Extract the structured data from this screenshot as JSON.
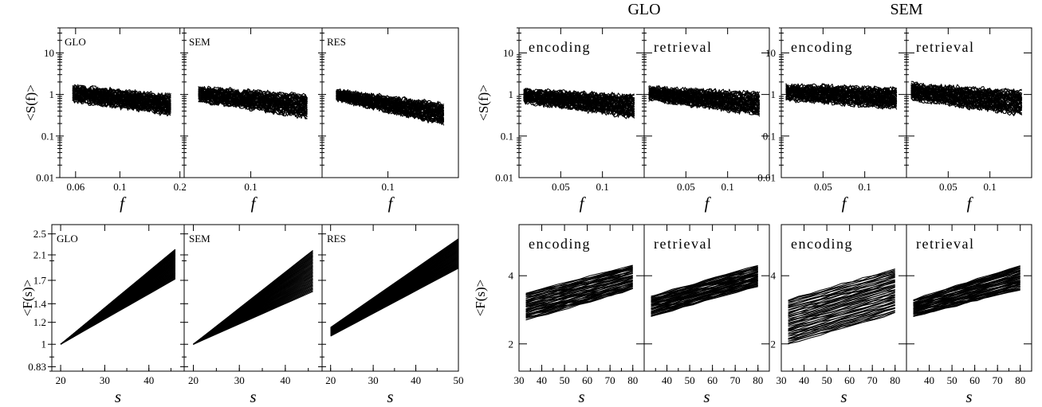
{
  "chart_data": [
    {
      "type": "line",
      "id": "left-spectrum",
      "ylabel": "<S(f)>",
      "xlabel": "f",
      "yscale": "log",
      "xscale": "log",
      "ylim": [
        0.01,
        40
      ],
      "yticks": [
        0.01,
        0.1,
        1,
        10
      ],
      "ytick_labels": [
        "0.01",
        "0.1",
        "1",
        "10"
      ],
      "panels": [
        {
          "label": "GLO",
          "xlim": [
            0.05,
            0.21
          ],
          "xticks": [
            0.06,
            0.1,
            0.2
          ],
          "xtick_labels": [
            "0.06",
            "0.1",
            "0.2"
          ],
          "band": {
            "x": [
              0.058,
              0.18
            ],
            "upper": [
              1.5,
              0.9
            ],
            "lower": [
              0.75,
              0.35
            ]
          }
        },
        {
          "label": "SEM",
          "xlim": [
            0.05,
            0.21
          ],
          "xticks": [
            0.1
          ],
          "xtick_labels": [
            "0.1"
          ],
          "band": {
            "x": [
              0.058,
              0.18
            ],
            "upper": [
              1.4,
              0.9
            ],
            "lower": [
              0.75,
              0.3
            ]
          }
        },
        {
          "label": "RES",
          "xlim": [
            0.05,
            0.21
          ],
          "xticks": [
            0.1
          ],
          "xtick_labels": [
            "0.1"
          ],
          "band": {
            "x": [
              0.058,
              0.18
            ],
            "upper": [
              1.2,
              0.55
            ],
            "lower": [
              0.8,
              0.2
            ]
          }
        }
      ]
    },
    {
      "type": "line",
      "id": "left-fluctuation",
      "ylabel": "<F(s)>",
      "xlabel": "s",
      "yscale": "log",
      "ylim": [
        0.8,
        2.7
      ],
      "yticks": [
        0.83,
        1,
        1.2,
        1.4,
        1.7,
        2.1,
        2.5
      ],
      "ytick_labels": [
        "0.83",
        "1",
        "1.2",
        "1.4",
        "1.7",
        "2.1",
        "2.5"
      ],
      "panels": [
        {
          "label": "GLO",
          "xlim": [
            18,
            48
          ],
          "xticks": [
            20,
            30,
            40
          ],
          "xtick_labels": [
            "20",
            "30",
            "40"
          ],
          "band": {
            "x": [
              20,
              46
            ],
            "upper": [
              1.0,
              2.2
            ],
            "lower": [
              1.0,
              1.72
            ]
          }
        },
        {
          "label": "SEM",
          "xlim": [
            18,
            48
          ],
          "xticks": [
            20,
            30,
            40
          ],
          "xtick_labels": [
            "20",
            "30",
            "40"
          ],
          "band": {
            "x": [
              20,
              46
            ],
            "upper": [
              1.0,
              2.18
            ],
            "lower": [
              1.0,
              1.55
            ]
          }
        },
        {
          "label": "RES",
          "xlim": [
            18,
            50
          ],
          "xticks": [
            20,
            30,
            40,
            50
          ],
          "xtick_labels": [
            "20",
            "30",
            "40",
            "50"
          ],
          "band": {
            "x": [
              20,
              50
            ],
            "upper": [
              1.15,
              2.4
            ],
            "lower": [
              1.07,
              1.88
            ]
          }
        }
      ]
    },
    {
      "type": "line",
      "id": "glo-spectrum",
      "title": "GLO",
      "ylabel": "<S(f)>",
      "xlabel": "f",
      "yscale": "log",
      "xscale": "log",
      "ylim": [
        0.01,
        40
      ],
      "yticks": [
        0.01,
        0.1,
        1,
        10
      ],
      "ytick_labels": [
        "0.01",
        "0.1",
        "1",
        "10"
      ],
      "panels": [
        {
          "label": "encoding",
          "xlim": [
            0.025,
            0.2
          ],
          "xticks": [
            0.05,
            0.1
          ],
          "xtick_labels": [
            "0.05",
            "0.1"
          ],
          "band": {
            "x": [
              0.027,
              0.17
            ],
            "upper": [
              1.2,
              0.9
            ],
            "lower": [
              0.7,
              0.3
            ]
          }
        },
        {
          "label": "retrieval",
          "xlim": [
            0.025,
            0.2
          ],
          "xticks": [
            0.05,
            0.1
          ],
          "xtick_labels": [
            "0.05",
            "0.1"
          ],
          "band": {
            "x": [
              0.027,
              0.17
            ],
            "upper": [
              1.4,
              1.0
            ],
            "lower": [
              0.8,
              0.35
            ]
          }
        }
      ]
    },
    {
      "type": "line",
      "id": "glo-fluctuation",
      "ylabel": "<F(s)>",
      "xlabel": "s",
      "ylim": [
        1.2,
        5.5
      ],
      "yticks": [
        2,
        4
      ],
      "ytick_labels": [
        "2",
        "4"
      ],
      "panels": [
        {
          "label": "encoding",
          "xlim": [
            30,
            85
          ],
          "xticks": [
            30,
            40,
            50,
            60,
            70,
            80
          ],
          "xtick_labels": [
            "30",
            "40",
            "50",
            "60",
            "70",
            "80"
          ],
          "band": {
            "x": [
              33,
              80
            ],
            "upper": [
              3.5,
              4.3
            ],
            "lower": [
              2.7,
              3.6
            ]
          }
        },
        {
          "label": "retrieval",
          "xlim": [
            30,
            85
          ],
          "xticks": [
            40,
            50,
            60,
            70,
            80
          ],
          "xtick_labels": [
            "40",
            "50",
            "60",
            "70",
            "80"
          ],
          "band": {
            "x": [
              33,
              80
            ],
            "upper": [
              3.4,
              4.3
            ],
            "lower": [
              2.8,
              3.7
            ]
          }
        }
      ]
    },
    {
      "type": "line",
      "id": "sem-spectrum",
      "title": "SEM",
      "ylabel": "<S(f)>",
      "xlabel": "f",
      "yscale": "log",
      "xscale": "log",
      "ylim": [
        0.01,
        40
      ],
      "yticks": [
        0.01,
        0.1,
        1,
        10
      ],
      "ytick_labels": [
        "0.01",
        "0.1",
        "1",
        "10"
      ],
      "panels": [
        {
          "label": "encoding",
          "xlim": [
            0.025,
            0.2
          ],
          "xticks": [
            0.05,
            0.1
          ],
          "xtick_labels": [
            "0.05",
            "0.1"
          ],
          "band": {
            "x": [
              0.027,
              0.17
            ],
            "upper": [
              1.6,
              1.3
            ],
            "lower": [
              0.8,
              0.5
            ]
          }
        },
        {
          "label": "retrieval",
          "xlim": [
            0.025,
            0.2
          ],
          "xticks": [
            0.05,
            0.1
          ],
          "xtick_labels": [
            "0.05",
            "0.1"
          ],
          "band": {
            "x": [
              0.027,
              0.17
            ],
            "upper": [
              1.7,
              1.1
            ],
            "lower": [
              0.8,
              0.35
            ]
          }
        }
      ]
    },
    {
      "type": "line",
      "id": "sem-fluctuation",
      "ylabel": "<F(s)>",
      "xlabel": "s",
      "ylim": [
        1.2,
        5.5
      ],
      "yticks": [
        2,
        4
      ],
      "ytick_labels": [
        "2",
        "4"
      ],
      "panels": [
        {
          "label": "encoding",
          "xlim": [
            30,
            85
          ],
          "xticks": [
            30,
            40,
            50,
            60,
            70,
            80
          ],
          "xtick_labels": [
            "30",
            "40",
            "50",
            "60",
            "70",
            "80"
          ],
          "band": {
            "x": [
              33,
              80
            ],
            "upper": [
              3.3,
              4.2
            ],
            "lower": [
              2.0,
              2.9
            ]
          }
        },
        {
          "label": "retrieval",
          "xlim": [
            30,
            85
          ],
          "xticks": [
            40,
            50,
            60,
            70,
            80
          ],
          "xtick_labels": [
            "40",
            "50",
            "60",
            "70",
            "80"
          ],
          "band": {
            "x": [
              33,
              80
            ],
            "upper": [
              3.3,
              4.3
            ],
            "lower": [
              2.8,
              3.6
            ]
          }
        }
      ]
    }
  ]
}
